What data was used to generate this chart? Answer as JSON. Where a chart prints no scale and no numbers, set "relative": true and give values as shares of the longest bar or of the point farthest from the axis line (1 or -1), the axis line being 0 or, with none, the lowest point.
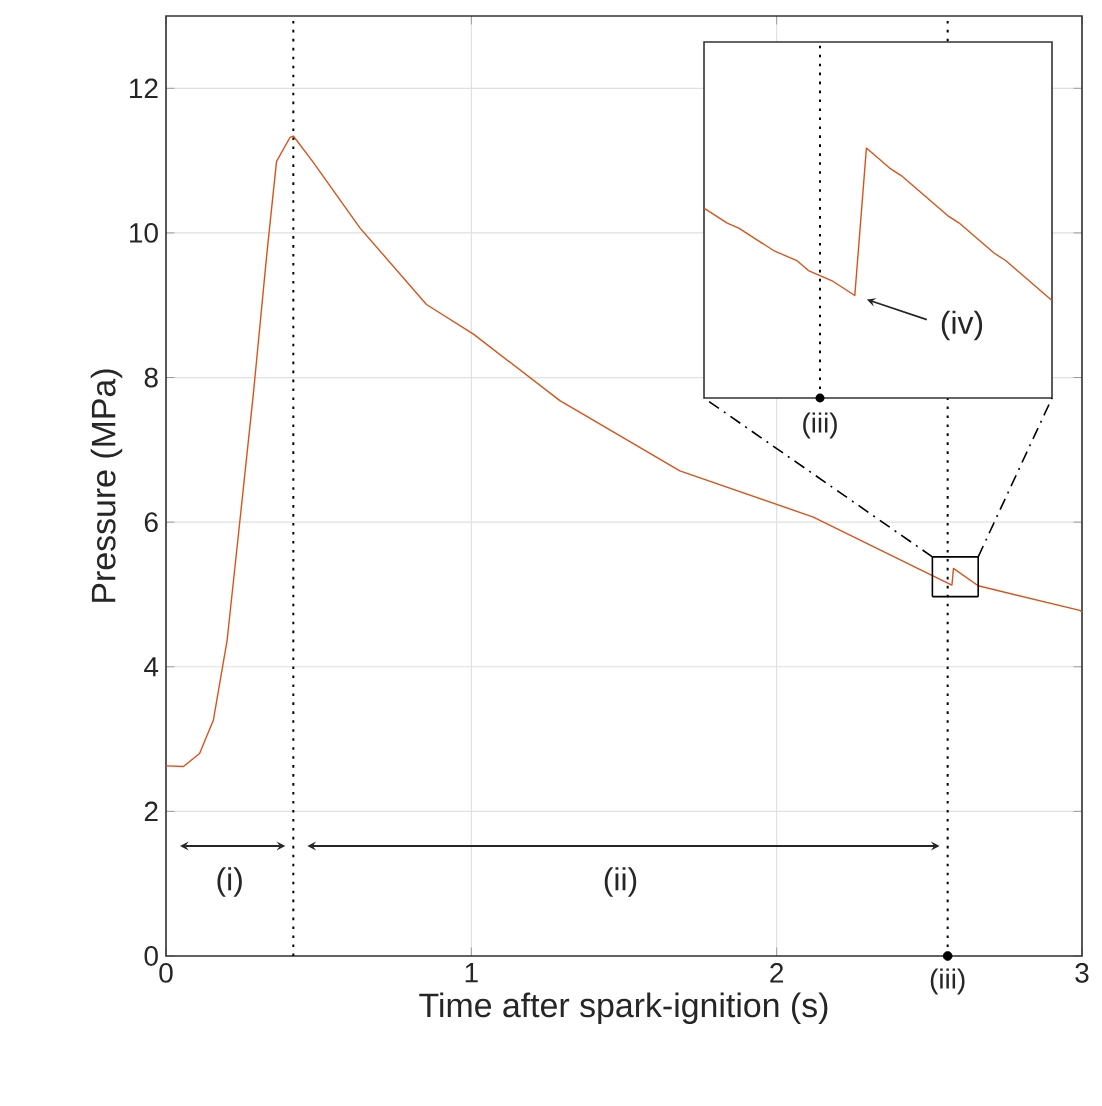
{
  "chart_data": [
    {
      "type": "line",
      "xlabel": "Time after spark-ignition (s)",
      "ylabel": "Pressure (MPa)",
      "xlim": [
        0,
        3
      ],
      "ylim": [
        0,
        13
      ],
      "xticks": [
        0,
        1,
        2,
        3
      ],
      "yticks": [
        0,
        2,
        4,
        6,
        8,
        10,
        12
      ],
      "grid": true,
      "series": [
        {
          "color": "#d95319",
          "x": [
            0,
            0.057,
            0.11,
            0.155,
            0.2,
            0.242,
            0.286,
            0.33,
            0.362,
            0.406,
            0.417,
            0.48,
            0.635,
            0.853,
            1.007,
            1.29,
            1.683,
            2.12,
            2.51,
            2.574,
            2.579,
            2.66,
            2.993,
            3.0
          ],
          "values": [
            2.63,
            2.62,
            2.8,
            3.26,
            4.36,
            6.02,
            7.77,
            9.7,
            10.99,
            11.32,
            11.34,
            10.99,
            10.07,
            9.01,
            8.6,
            7.68,
            6.71,
            6.07,
            5.26,
            5.13,
            5.36,
            5.12,
            4.78,
            4.76
          ]
        },
        {
          "type": "scatter",
          "color": "#000000",
          "x": [
            2.56
          ],
          "values": [
            0
          ]
        }
      ],
      "ref_lines": [
        {
          "axis": "x",
          "value": 0.417,
          "line_style": "dotted"
        },
        {
          "axis": "x",
          "value": 2.56,
          "label": "(iii)",
          "line_style": "dotted"
        }
      ],
      "annotations": [
        "(i)",
        "(ii)"
      ]
    },
    {
      "type": "line",
      "relative": true,
      "categories": [
        null,
        null,
        null,
        null,
        null,
        null,
        null,
        null,
        null,
        null,
        null,
        null,
        null,
        null,
        null,
        null,
        null,
        null,
        null,
        null,
        null,
        null,
        null,
        null,
        null,
        null,
        null,
        null,
        null,
        null,
        null
      ],
      "series": [
        {
          "color": "#d95319",
          "values": [
            0.76,
            0.73,
            0.7,
            0.68,
            0.65,
            0.62,
            0.59,
            0.57,
            0.55,
            0.51,
            0.49,
            0.47,
            0.44,
            0.41,
            1,
            0.96,
            0.92,
            0.89,
            0.85,
            0.81,
            0.77,
            0.73,
            0.7,
            0.66,
            0.62,
            0.58,
            0.55,
            0.51,
            0.47,
            0.43,
            0.39
          ]
        }
      ],
      "annotations": [
        "(iii)",
        "(iv)"
      ]
    }
  ]
}
